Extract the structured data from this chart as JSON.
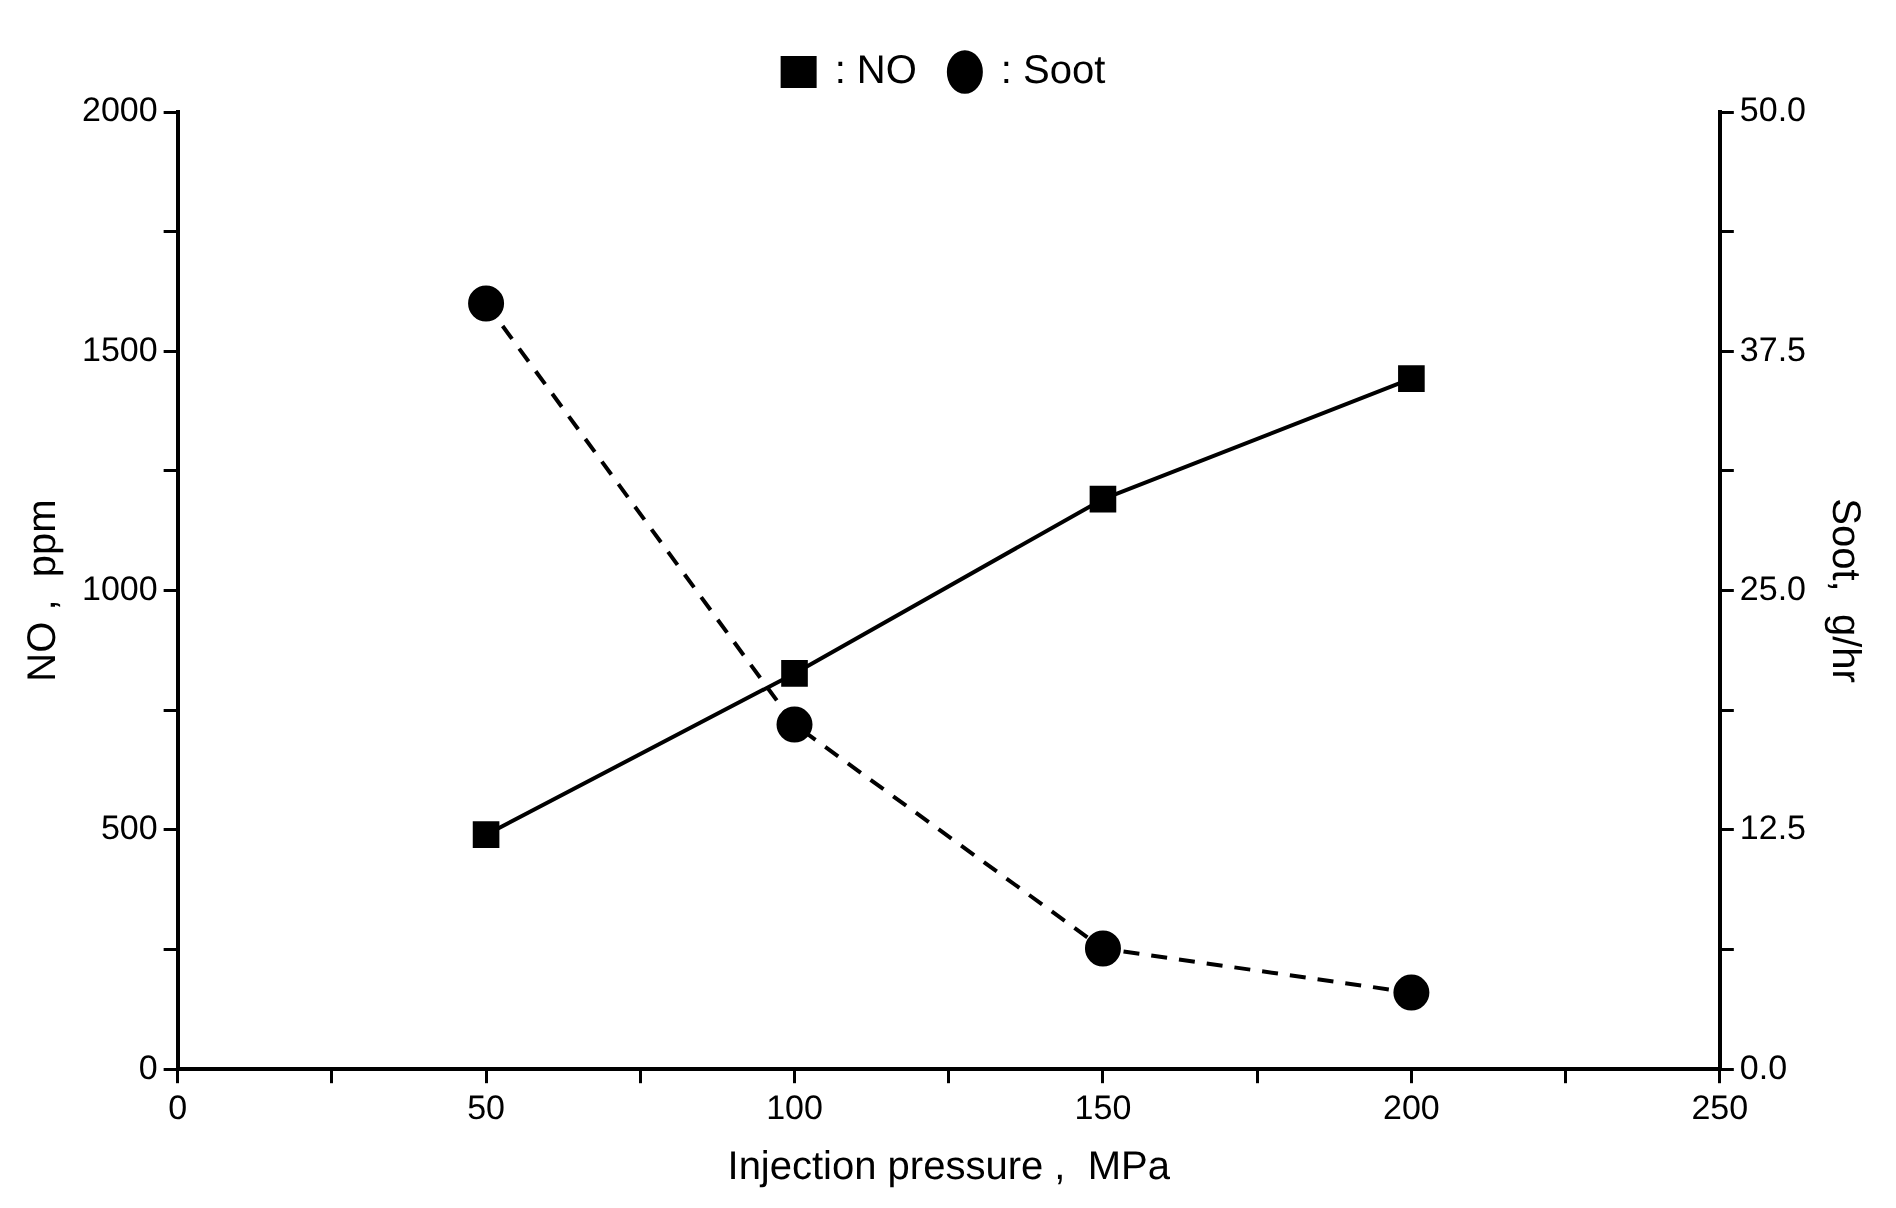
{
  "chart_data": {
    "type": "line",
    "xlabel": "Injection pressure ,  MPa",
    "ylabel": "NO ,  ppm",
    "y2label": "Soot,  g/hr",
    "x": [
      50,
      100,
      150,
      200
    ],
    "series": [
      {
        "name": ": NO",
        "color": "#000000",
        "values": [
          490,
          827,
          1191,
          1443
        ],
        "marker": "square",
        "line_style": "solid"
      },
      {
        "name": ": Soot",
        "color": "#000000",
        "values": [
          40.0,
          18.0,
          6.3,
          4.0
        ],
        "axis": "y2",
        "marker": "circle",
        "line_style": "dashed"
      }
    ],
    "xlim": [
      0,
      250
    ],
    "xticks": [
      0,
      {
        "value": 25,
        "label": null
      },
      50,
      {
        "value": 75,
        "label": null
      },
      100,
      {
        "value": 125,
        "label": null
      },
      150,
      {
        "value": 175,
        "label": null
      },
      200,
      {
        "value": 225,
        "label": null
      },
      250
    ],
    "ylim": [
      0,
      2000
    ],
    "yticks": [
      0,
      {
        "value": 250,
        "label": null
      },
      500,
      {
        "value": 750,
        "label": null
      },
      1000,
      {
        "value": 1250,
        "label": null
      },
      1500,
      {
        "value": 1750,
        "label": null
      },
      2000
    ],
    "y2lim": [
      0,
      50
    ],
    "y2ticks": [
      {
        "value": 0,
        "label": "0.0"
      },
      {
        "value": 6.25,
        "label": null
      },
      12.5,
      {
        "value": 18.75,
        "label": null
      },
      {
        "value": 25,
        "label": "25.0"
      },
      {
        "value": 31.25,
        "label": null
      },
      37.5,
      {
        "value": 43.75,
        "label": null
      },
      {
        "value": 50,
        "label": "50.0"
      }
    ],
    "grid": false,
    "legend": "top"
  }
}
